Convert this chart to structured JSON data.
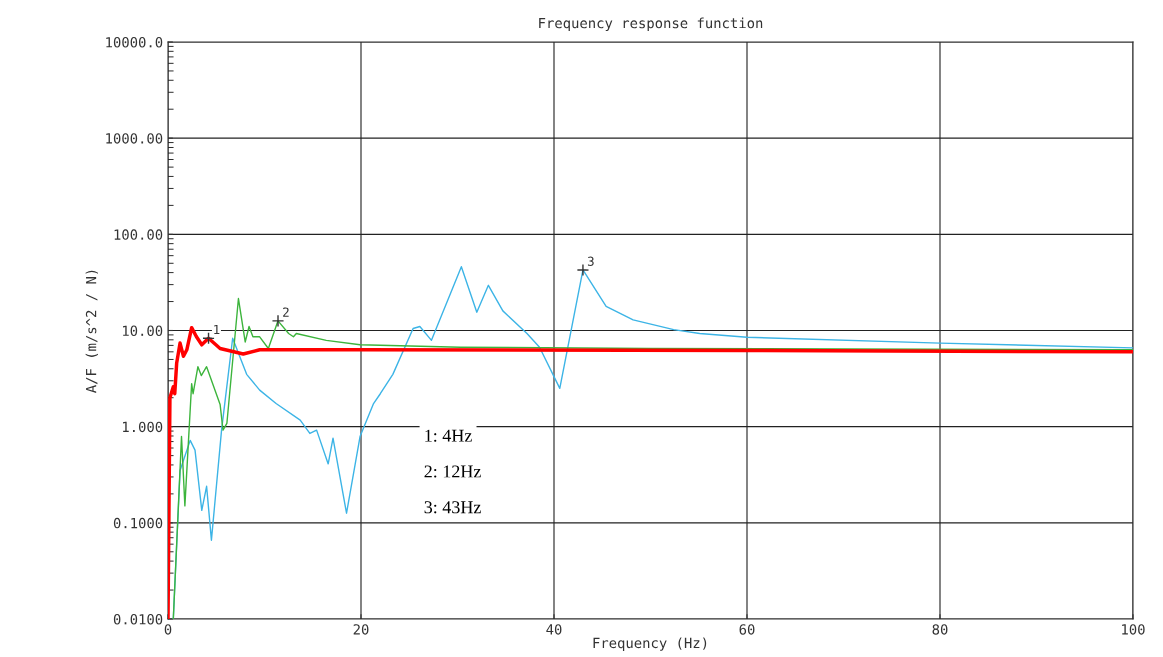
{
  "chart_data": {
    "type": "line",
    "title": "Frequency response function",
    "xlabel": "Frequency (Hz)",
    "ylabel": "A/F (m/s^2 / N)",
    "log": "y",
    "grid": true,
    "line_style": "solid",
    "marker": "none",
    "xlim": [
      0,
      100
    ],
    "xticks": [
      0,
      20,
      40,
      60,
      80,
      100
    ],
    "ylim": [
      0.01,
      10000
    ],
    "yticks": [
      {
        "value": 10000,
        "label": "10000.0"
      },
      {
        "value": 1000,
        "label": "1000.00"
      },
      {
        "value": 100,
        "label": "100.00"
      },
      {
        "value": 10,
        "label": "10.00"
      },
      {
        "value": 1,
        "label": "1.000"
      },
      {
        "value": 0.1,
        "label": "0.1000"
      },
      {
        "value": 0.01,
        "label": "0.0100"
      }
    ],
    "series": [
      {
        "color": "#3cb4e6",
        "x": [
          0.55,
          1.25,
          2.3,
          2.8,
          3.5,
          4.0,
          4.5,
          5.55,
          6.7,
          8.15,
          9.5,
          11.2,
          13.7,
          14.7,
          15.4,
          16.6,
          17.1,
          18.5,
          19.9,
          21.3,
          22.0,
          23.3,
          25.4,
          26.1,
          27.3,
          30.4,
          32.0,
          33.2,
          34.7,
          37.2,
          38.5,
          40.6,
          43.0,
          45.4,
          48.2,
          52.4,
          55.1,
          60,
          80,
          100
        ],
        "values": [
          0.01,
          0.35,
          0.72,
          0.57,
          0.135,
          0.24,
          0.066,
          0.92,
          8.3,
          3.5,
          2.4,
          1.74,
          1.17,
          0.85,
          0.92,
          0.41,
          0.76,
          0.126,
          0.79,
          1.74,
          2.2,
          3.5,
          10.5,
          11,
          7.9,
          46,
          15.5,
          29.5,
          16,
          9.3,
          6.7,
          2.5,
          42.6,
          17.8,
          12.9,
          10.2,
          9.3,
          8.5,
          7.4,
          6.6
        ]
      },
      {
        "color": "#3cb43c",
        "x": [
          0.55,
          1.4,
          1.75,
          2.45,
          2.6,
          3.1,
          3.45,
          4.0,
          5.4,
          5.7,
          6.1,
          7.3,
          8.0,
          8.4,
          8.8,
          9.5,
          10.4,
          11.4,
          12.5,
          13.0,
          13.3,
          16.4,
          19.9,
          30.3,
          50,
          100
        ],
        "values": [
          0.01,
          0.79,
          0.15,
          2.8,
          2.2,
          4.2,
          3.4,
          4.2,
          1.7,
          0.92,
          1.08,
          21.5,
          7.6,
          11,
          8.6,
          8.6,
          6.5,
          12.6,
          9.3,
          8.6,
          9.3,
          7.9,
          7.1,
          6.7,
          6.5,
          6.3
        ]
      },
      {
        "color": "#ff0000",
        "x": [
          0.0,
          0.2,
          0.55,
          0.7,
          0.9,
          1.25,
          1.6,
          1.95,
          2.45,
          2.95,
          3.5,
          4.2,
          5.4,
          7.8,
          9.5,
          19.9,
          60,
          100
        ],
        "values": [
          0.01,
          2.0,
          2.6,
          2.2,
          4.6,
          7.4,
          5.4,
          6.3,
          10.7,
          8.6,
          7.1,
          8.3,
          6.5,
          5.7,
          6.3,
          6.3,
          6.2,
          6.0
        ]
      }
    ],
    "annotations": [
      {
        "text": "1",
        "x": 4.2,
        "y": 8.3
      },
      {
        "text": "2",
        "x": 11.4,
        "y": 12.6
      },
      {
        "text": "3",
        "x": 43.0,
        "y": 42.6
      },
      "1: 4Hz",
      "2: 12Hz",
      "3: 43Hz"
    ]
  }
}
